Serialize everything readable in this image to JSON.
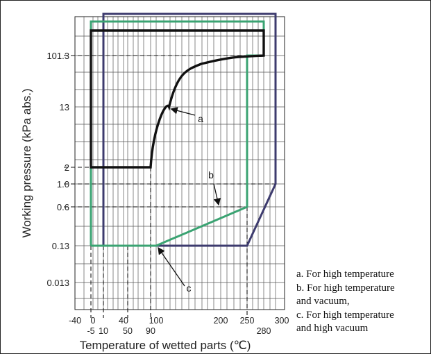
{
  "chart_data": {
    "type": "line",
    "title": "",
    "xlabel": "Temperature of wetted parts (℃)",
    "ylabel": "Working pressure (kPa abs.)",
    "x_ticks": [
      {
        "value": -40,
        "label": "-40",
        "row": "upper"
      },
      {
        "value": -5,
        "label": "-5",
        "row": "lower"
      },
      {
        "value": 0,
        "label": "0",
        "row": "upper"
      },
      {
        "value": 10,
        "label": "10",
        "row": "lower"
      },
      {
        "value": 40,
        "label": "40",
        "row": "upper"
      },
      {
        "value": 50,
        "label": "50",
        "row": "lower"
      },
      {
        "value": 90,
        "label": "90",
        "row": "lower"
      },
      {
        "value": 100,
        "label": "100",
        "row": "upper"
      },
      {
        "value": 200,
        "label": "200",
        "row": "upper"
      },
      {
        "value": 250,
        "label": "250",
        "row": "upper"
      },
      {
        "value": 280,
        "label": "280",
        "row": "lower"
      },
      {
        "value": 300,
        "label": "300",
        "row": "upper"
      }
    ],
    "y_ticks": [
      {
        "value": 0.013,
        "label": "0.013"
      },
      {
        "value": 0.13,
        "label": "0.13"
      },
      {
        "value": 0.6,
        "label": "0.6"
      },
      {
        "value": 1.0,
        "label": "1.0"
      },
      {
        "value": 2,
        "label": "2"
      },
      {
        "value": 13,
        "label": "13"
      },
      {
        "value": 101.3,
        "label": "101.3"
      }
    ],
    "series": [
      {
        "key": "a",
        "color": "#111111",
        "points": [
          [
            -5,
            2
          ],
          [
            90,
            2
          ],
          [
            120,
            13
          ],
          [
            170,
            60
          ],
          [
            280,
            101.3
          ],
          [
            280,
            160
          ],
          [
            -5,
            160
          ],
          [
            -5,
            2
          ]
        ]
      },
      {
        "key": "b",
        "color": "#3aa372",
        "points": [
          [
            -5,
            0.13
          ],
          [
            100,
            0.13
          ],
          [
            250,
            0.6
          ],
          [
            250,
            101.3
          ],
          [
            280,
            101.3
          ],
          [
            280,
            220
          ],
          [
            -5,
            220
          ],
          [
            -5,
            0.13
          ]
        ]
      },
      {
        "key": "c",
        "color": "#3d3b6e",
        "points": [
          [
            10,
            0.13
          ],
          [
            250,
            0.13
          ],
          [
            290,
            1.0
          ],
          [
            290,
            300
          ],
          [
            10,
            300
          ],
          [
            10,
            0.13
          ]
        ]
      }
    ],
    "reference_lines": [
      {
        "orientation": "h",
        "y": 101.3,
        "x_from": -40,
        "x_to": 280
      },
      {
        "orientation": "h",
        "y": 2,
        "x_from": -40,
        "x_to": -5
      },
      {
        "orientation": "h",
        "y": 1.0,
        "x_from": -40,
        "x_to": 290
      },
      {
        "orientation": "h",
        "y": 0.6,
        "x_from": -40,
        "x_to": 250
      },
      {
        "orientation": "v",
        "x": -5,
        "y_from": 0.13
      },
      {
        "orientation": "v",
        "x": 10,
        "y_from": 0.13
      },
      {
        "orientation": "v",
        "x": 50,
        "y_from": 0.13
      },
      {
        "orientation": "v",
        "x": 90,
        "y_from": 2
      },
      {
        "orientation": "v",
        "x": 250,
        "y_from": 0.6
      }
    ],
    "annotations": [
      {
        "label": "a",
        "target": [
          120,
          13
        ]
      },
      {
        "label": "b",
        "target": [
          200,
          0.6
        ]
      },
      {
        "label": "c",
        "target": [
          100,
          0.13
        ]
      }
    ],
    "grid": true,
    "legend": "right"
  },
  "notes": [
    "a. For high temperature",
    "b. For high temperature",
    "and vacuum,",
    "c. For high temperature",
    "and high vacuum"
  ]
}
